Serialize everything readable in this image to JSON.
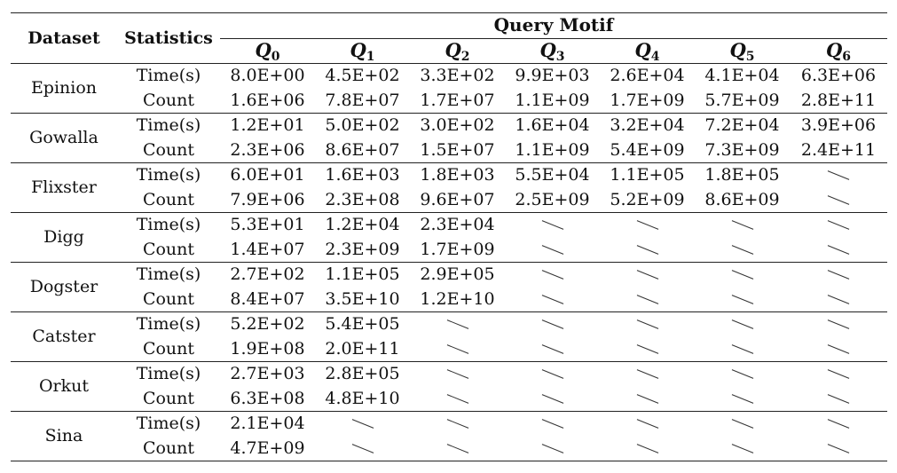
{
  "header": {
    "dataset": "Dataset",
    "statistics": "Statistics",
    "query_motif": "Query Motif",
    "queries": [
      "Q0",
      "Q1",
      "Q2",
      "Q3",
      "Q4",
      "Q5",
      "Q6"
    ]
  },
  "row_labels": [
    "Time(s)",
    "Count"
  ],
  "rows": [
    {
      "dataset": "Epinion",
      "time": [
        "8.0E+00",
        "4.5E+02",
        "3.3E+02",
        "9.9E+03",
        "2.6E+04",
        "4.1E+04",
        "6.3E+06"
      ],
      "count": [
        "1.6E+06",
        "7.8E+07",
        "1.7E+07",
        "1.1E+09",
        "1.7E+09",
        "5.7E+09",
        "2.8E+11"
      ]
    },
    {
      "dataset": "Gowalla",
      "time": [
        "1.2E+01",
        "5.0E+02",
        "3.0E+02",
        "1.6E+04",
        "3.2E+04",
        "7.2E+04",
        "3.9E+06"
      ],
      "count": [
        "2.3E+06",
        "8.6E+07",
        "1.5E+07",
        "1.1E+09",
        "5.4E+09",
        "7.3E+09",
        "2.4E+11"
      ]
    },
    {
      "dataset": "Flixster",
      "time": [
        "6.0E+01",
        "1.6E+03",
        "1.8E+03",
        "5.5E+04",
        "1.1E+05",
        "1.8E+05",
        null
      ],
      "count": [
        "7.9E+06",
        "2.3E+08",
        "9.6E+07",
        "2.5E+09",
        "5.2E+09",
        "8.6E+09",
        null
      ]
    },
    {
      "dataset": "Digg",
      "time": [
        "5.3E+01",
        "1.2E+04",
        "2.3E+04",
        null,
        null,
        null,
        null
      ],
      "count": [
        "1.4E+07",
        "2.3E+09",
        "1.7E+09",
        null,
        null,
        null,
        null
      ]
    },
    {
      "dataset": "Dogster",
      "time": [
        "2.7E+02",
        "1.1E+05",
        "2.9E+05",
        null,
        null,
        null,
        null
      ],
      "count": [
        "8.4E+07",
        "3.5E+10",
        "1.2E+10",
        null,
        null,
        null,
        null
      ]
    },
    {
      "dataset": "Catster",
      "time": [
        "5.2E+02",
        "5.4E+05",
        null,
        null,
        null,
        null,
        null
      ],
      "count": [
        "1.9E+08",
        "2.0E+11",
        null,
        null,
        null,
        null,
        null
      ]
    },
    {
      "dataset": "Orkut",
      "time": [
        "2.7E+03",
        "2.8E+05",
        null,
        null,
        null,
        null,
        null
      ],
      "count": [
        "6.3E+08",
        "4.8E+10",
        null,
        null,
        null,
        null,
        null
      ]
    },
    {
      "dataset": "Sina",
      "time": [
        "2.1E+04",
        null,
        null,
        null,
        null,
        null,
        null
      ],
      "count": [
        "4.7E+09",
        null,
        null,
        null,
        null,
        null,
        null
      ]
    }
  ]
}
